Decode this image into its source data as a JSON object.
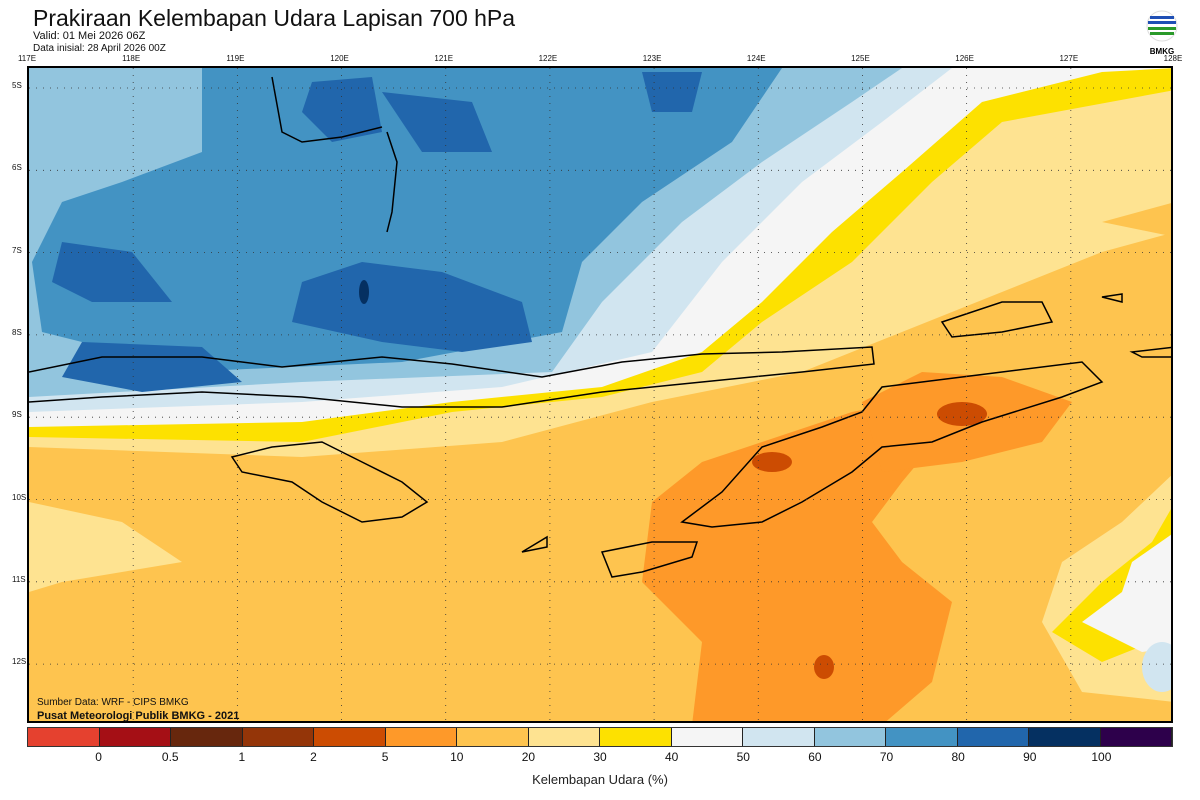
{
  "header": {
    "title": "Prakiraan Kelembapan Udara Lapisan 700 hPa",
    "valid": "Valid: 01 Mei 2026 06Z",
    "init": "Data inisial: 28 April 2026 00Z",
    "logo_text": "BMKG"
  },
  "axes": {
    "lon_ticks": [
      "117E",
      "118E",
      "119E",
      "120E",
      "121E",
      "122E",
      "123E",
      "124E",
      "125E",
      "126E",
      "127E",
      "128E"
    ],
    "lat_ticks": [
      "5S",
      "6S",
      "7S",
      "8S",
      "9S",
      "10S",
      "11S",
      "12S"
    ]
  },
  "footer": {
    "source": "Sumber Data: WRF - CIPS BMKG",
    "credit": "Pusat Meteorologi Publik BMKG - 2021"
  },
  "colorbar": {
    "label": "Kelembapan Udara (%)",
    "ticks": [
      "0",
      "0.5",
      "1",
      "2",
      "5",
      "10",
      "20",
      "30",
      "40",
      "50",
      "60",
      "70",
      "80",
      "90",
      "100"
    ],
    "colors": [
      "#e5412f",
      "#a50f15",
      "#67270d",
      "#943508",
      "#cc4c02",
      "#fe9929",
      "#fec44f",
      "#fee391",
      "#fde100",
      "#f5f5f5",
      "#d1e5f0",
      "#92c5de",
      "#4393c3",
      "#2166ac",
      "#053061",
      "#2d004b"
    ]
  }
}
